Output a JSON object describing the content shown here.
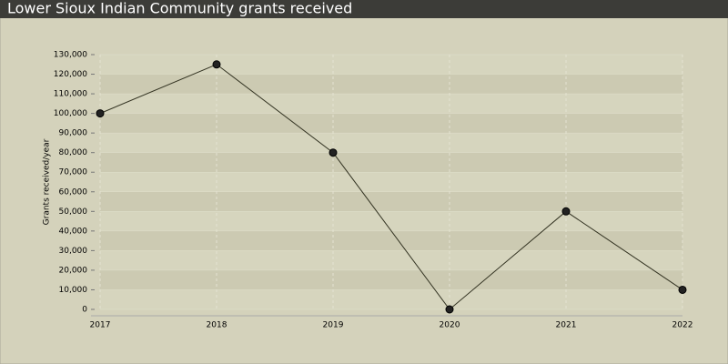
{
  "chart_data": {
    "type": "line",
    "title": "Lower Sioux Indian Community grants received",
    "y_label": "Grants received/year",
    "categories": [
      "2017",
      "2018",
      "2019",
      "2020",
      "2021",
      "2022"
    ],
    "values": [
      100000,
      125000,
      80000,
      0,
      50000,
      10000
    ],
    "color": "#333322",
    "ylim": [
      0,
      130000
    ],
    "yticks": [
      0,
      {
        "value": 10000,
        "label": "10,000"
      },
      {
        "value": 20000,
        "label": "20,000"
      },
      {
        "value": 30000,
        "label": "30,000"
      },
      {
        "value": 40000,
        "label": "40,000"
      },
      {
        "value": 50000,
        "label": "50,000"
      },
      {
        "value": 60000,
        "label": "60,000"
      },
      {
        "value": 70000,
        "label": "70,000"
      },
      {
        "value": 80000,
        "label": "80,000"
      },
      {
        "value": 90000,
        "label": "90,000"
      },
      {
        "value": 100000,
        "label": "100,000"
      },
      {
        "value": 110000,
        "label": "110,000"
      },
      {
        "value": 120000,
        "label": "120,000"
      },
      {
        "value": 130000,
        "label": "130,000"
      }
    ],
    "grid": true
  }
}
